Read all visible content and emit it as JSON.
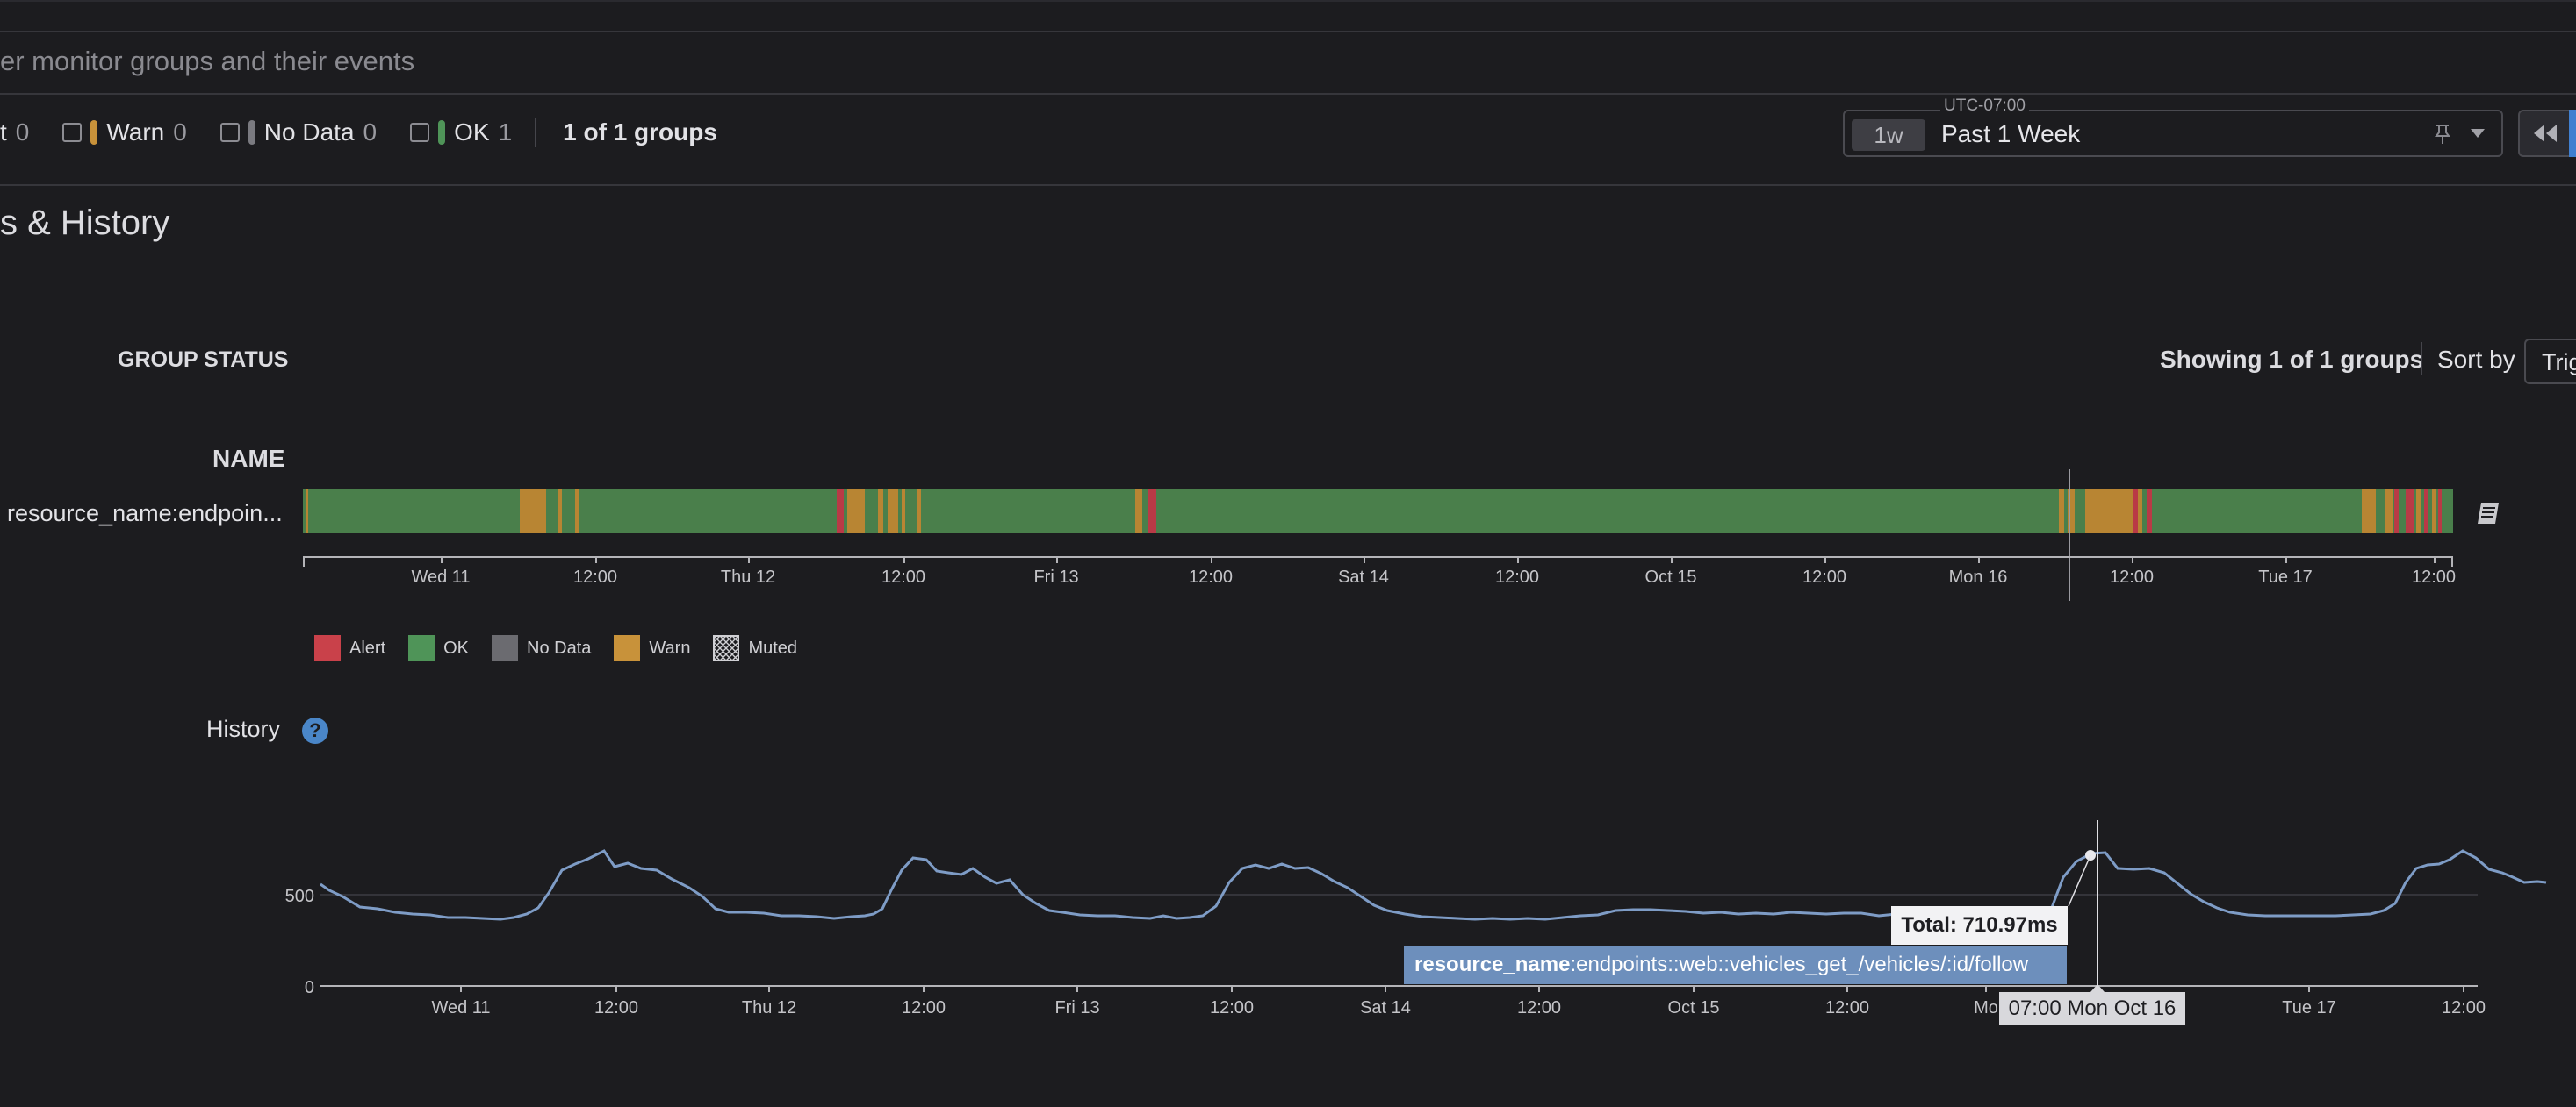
{
  "search": {
    "placeholder": "er monitor groups and their events"
  },
  "status_filters": {
    "alert_tail": "t",
    "alert_count": "0",
    "warn_label": "Warn",
    "warn_count": "0",
    "nodata_label": "No Data",
    "nodata_count": "0",
    "ok_label": "OK",
    "ok_count": "1",
    "groups_summary": "1 of 1 groups"
  },
  "timeframe": {
    "timezone": "UTC-07:00",
    "chip": "1w",
    "label": "Past 1 Week"
  },
  "section_title": "s & History",
  "group_status": {
    "heading": "GROUP STATUS",
    "showing": "Showing 1 of 1 groups",
    "sort_by": "Sort by",
    "sort_value": "Trig",
    "name_header": "NAME",
    "row_name": "resource_name:endpoin..."
  },
  "timeline_axis": [
    "Wed 11",
    "12:00",
    "Thu 12",
    "12:00",
    "Fri 13",
    "12:00",
    "Sat 14",
    "12:00",
    "Oct 15",
    "12:00",
    "Mon 16",
    "12:00",
    "Tue 17",
    "12:00"
  ],
  "legend": [
    {
      "label": "Alert",
      "color": "#c9414a"
    },
    {
      "label": "OK",
      "color": "#4f9458"
    },
    {
      "label": "No Data",
      "color": "#6b6b70"
    },
    {
      "label": "Warn",
      "color": "#c8923a"
    },
    {
      "label": "Muted",
      "color": "hatched"
    }
  ],
  "history": {
    "title": "History",
    "help_icon": "?",
    "tooltip_total": "Total: 710.97ms",
    "tooltip_group_key": "resource_name",
    "tooltip_group_value": ":endpoints::web::vehicles_get_/vehicles/:id/follow",
    "tooltip_time": "07:00 Mon Oct 16",
    "x_labels": [
      "Wed 11",
      "12:00",
      "Thu 12",
      "12:00",
      "Fri 13",
      "12:00",
      "Sat 14",
      "12:00",
      "Oct 15",
      "12:00",
      "Mo",
      "Tue 17",
      "12:00"
    ],
    "y_labels": [
      "500",
      "0"
    ]
  },
  "colors": {
    "ok": "#4a7f4b",
    "warn": "#b88533",
    "alert": "#b93a46",
    "line": "#7e9cc6"
  }
}
